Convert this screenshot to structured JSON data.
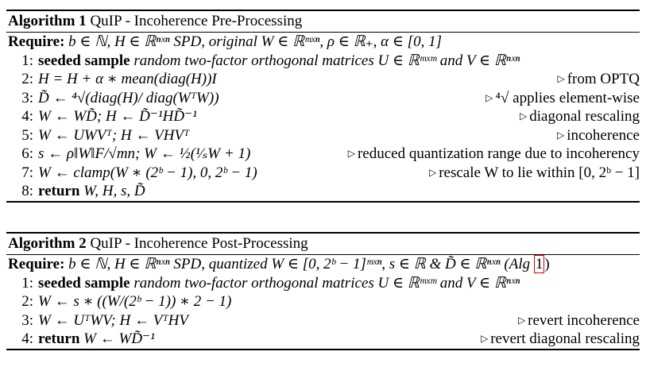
{
  "algorithm1": {
    "label": "Algorithm 1",
    "title": "QuIP - Incoherence Pre-Processing",
    "require_kw": "Require:",
    "require": "b ∈ ℕ, H ∈ ℝⁿˣⁿ SPD, original W ∈ ℝᵐˣⁿ, ρ ∈ ℝ₊, α ∈ [0, 1]",
    "steps": [
      {
        "num": "1:",
        "kw": "seeded sample",
        "text": " random two-factor orthogonal matrices U ∈ ℝᵐˣᵐ and V ∈ ℝⁿˣⁿ",
        "comment": ""
      },
      {
        "num": "2:",
        "kw": "",
        "text": "H = H + α ∗ mean(diag(H))I",
        "comment": "from OPTQ"
      },
      {
        "num": "3:",
        "kw": "",
        "text": "D̃ ← ⁴√(diag(H)/ diag(WᵀW))",
        "comment": "⁴√ applies element-wise"
      },
      {
        "num": "4:",
        "kw": "",
        "text": "W ← WD̃;  H ← D̃⁻¹HD̃⁻¹",
        "comment": "diagonal rescaling"
      },
      {
        "num": "5:",
        "kw": "",
        "text": "W ← UWVᵀ;  H ← VHVᵀ",
        "comment": "incoherence"
      },
      {
        "num": "6:",
        "kw": "",
        "text": "s ← ρ‖W‖F/√mn;  W ← ½(¹⁄ₛW + 1)",
        "comment": "reduced quantization range due to incoherency"
      },
      {
        "num": "7:",
        "kw": "",
        "text": "W ← clamp(W ∗ (2ᵇ − 1), 0, 2ᵇ − 1)",
        "comment": "rescale W to lie within [0, 2ᵇ − 1]"
      },
      {
        "num": "8:",
        "kw": "return",
        "text": " W, H, s, D̃",
        "comment": ""
      }
    ]
  },
  "algorithm2": {
    "label": "Algorithm 2",
    "title": "QuIP - Incoherence Post-Processing",
    "require_kw": "Require:",
    "require": "b ∈ ℕ, H ∈ ℝⁿˣⁿ SPD, quantized W ∈ [0, 2ᵇ − 1]ᵐˣⁿ, s ∈ ℝ & D̃ ∈ ℝⁿˣⁿ (Alg ",
    "require_ref": "1",
    "require_end": ")",
    "steps": [
      {
        "num": "1:",
        "kw": "seeded sample",
        "text": " random two-factor orthogonal matrices U ∈ ℝᵐˣᵐ and V ∈ ℝⁿˣⁿ",
        "comment": ""
      },
      {
        "num": "2:",
        "kw": "",
        "text": "W ← s ∗ ((W/(2ᵇ − 1)) ∗ 2 − 1)",
        "comment": ""
      },
      {
        "num": "3:",
        "kw": "",
        "text": "W ← UᵀWV;  H ← VᵀHV",
        "comment": "revert incoherence"
      },
      {
        "num": "4:",
        "kw": "return",
        "text": " W ← WD̃⁻¹",
        "comment": "revert diagonal rescaling"
      }
    ]
  },
  "icons": {
    "comment_marker": "triangle-right-icon"
  }
}
